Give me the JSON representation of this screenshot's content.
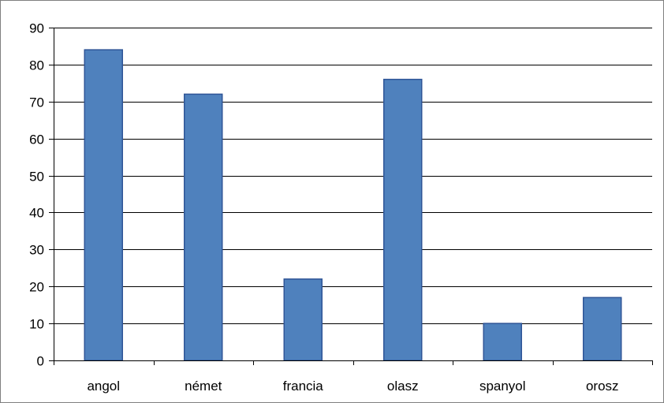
{
  "chart_data": {
    "type": "bar",
    "title": "",
    "xlabel": "",
    "ylabel": "",
    "categories": [
      "angol",
      "német",
      "francia",
      "olasz",
      "spanyol",
      "orosz"
    ],
    "values": [
      84,
      72,
      22,
      76,
      10,
      17
    ],
    "ylim": [
      0,
      90
    ],
    "yticks": [
      0,
      10,
      20,
      30,
      40,
      50,
      60,
      70,
      80,
      90
    ],
    "grid": true,
    "legend": "none",
    "colors": {
      "bar_fill": "#4f81bd",
      "bar_stroke": "#2f5597",
      "grid": "#000000",
      "axis": "#000000"
    }
  }
}
